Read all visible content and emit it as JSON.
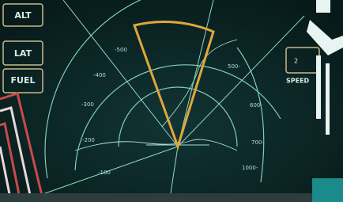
{
  "buttons": [
    {
      "label": "ALT"
    },
    {
      "label": "LAT"
    },
    {
      "label": "FUEL"
    }
  ],
  "speed": {
    "value": "2",
    "label": "SPEED"
  },
  "left_ranges": [
    "-500",
    "-400",
    "-300",
    "-200",
    "-100"
  ],
  "right_ranges": [
    "500-",
    "600-",
    "700-",
    "1000-"
  ]
}
